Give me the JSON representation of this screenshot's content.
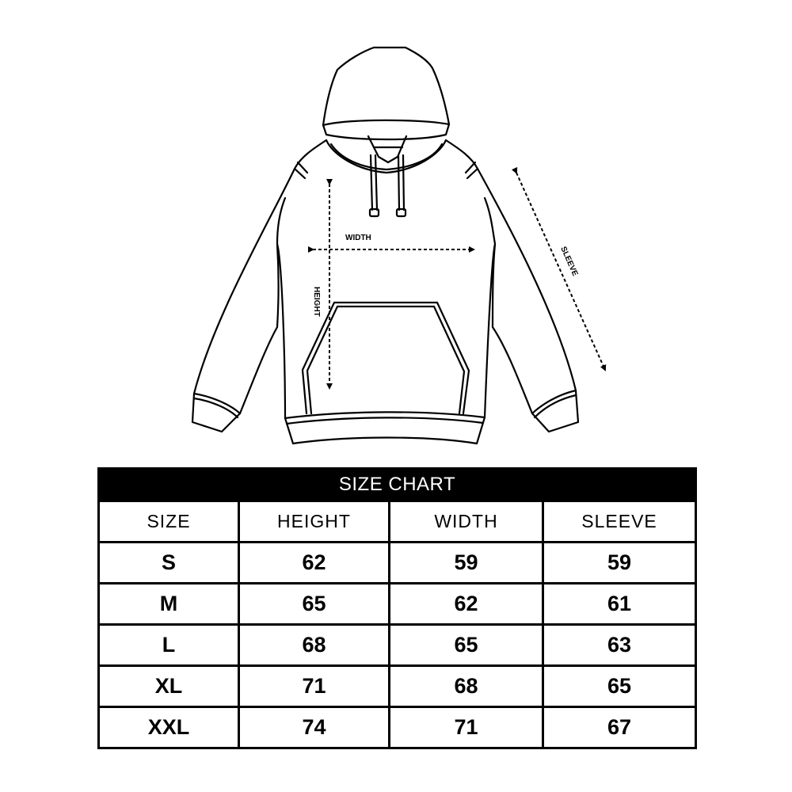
{
  "diagram": {
    "labels": {
      "width": "WIDTH",
      "height": "HEIGHT",
      "sleeve": "SLEEVE"
    },
    "icon": "hoodie-line-drawing"
  },
  "table": {
    "title": "SIZE CHART",
    "headers": [
      "SIZE",
      "HEIGHT",
      "WIDTH",
      "SLEEVE"
    ],
    "rows": [
      [
        "S",
        "62",
        "59",
        "59"
      ],
      [
        "M",
        "65",
        "62",
        "61"
      ],
      [
        "L",
        "68",
        "65",
        "63"
      ],
      [
        "XL",
        "71",
        "68",
        "65"
      ],
      [
        "XXL",
        "74",
        "71",
        "67"
      ]
    ]
  },
  "colors": {
    "ink": "#000000",
    "background": "#ffffff"
  }
}
